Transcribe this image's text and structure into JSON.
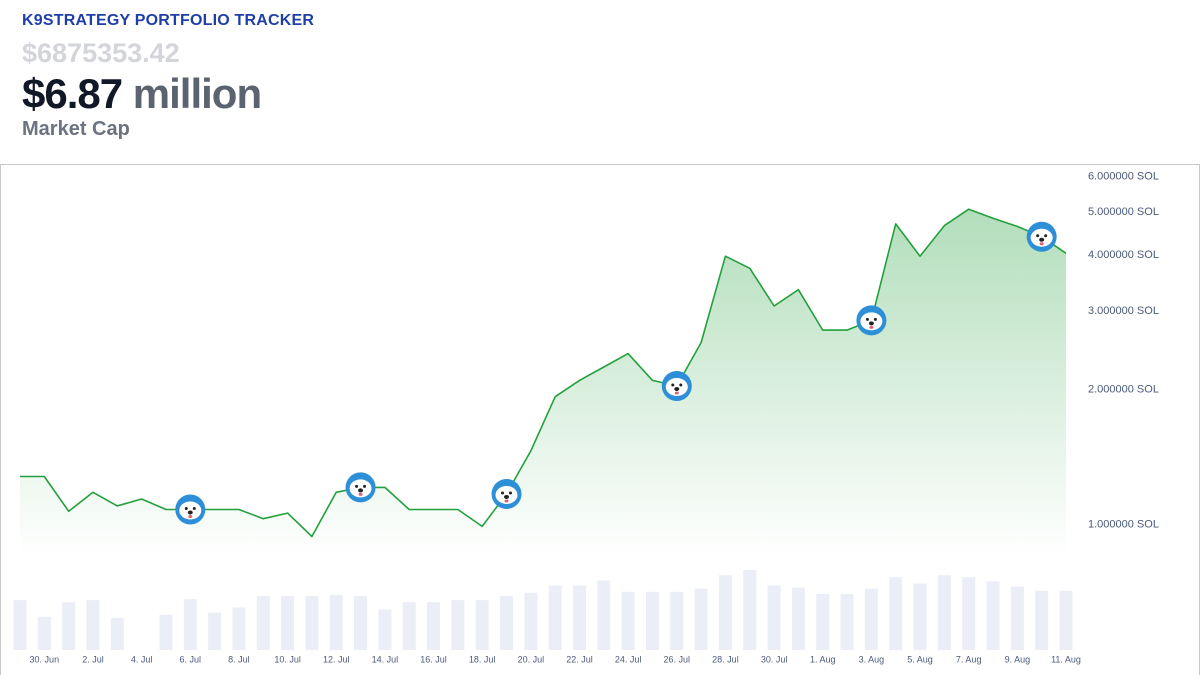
{
  "header": {
    "title": "K9STRATEGY PORTFOLIO TRACKER",
    "exact_value": "$6875353.42",
    "value": "$6.87",
    "unit": "million",
    "label": "Market Cap"
  },
  "chart_data": {
    "type": "area",
    "categories": [
      null,
      "30. Jun",
      null,
      "2. Jul",
      null,
      "4. Jul",
      null,
      "6. Jul",
      null,
      "8. Jul",
      null,
      "10. Jul",
      null,
      "12. Jul",
      null,
      "14. Jul",
      null,
      "16. Jul",
      null,
      "18. Jul",
      null,
      "20. Jul",
      null,
      "22. Jul",
      null,
      "24. Jul",
      null,
      "26. Jul",
      null,
      "28. Jul",
      null,
      "30. Jul",
      null,
      "1. Aug",
      null,
      "3. Aug",
      null,
      "5. Aug",
      null,
      "7. Aug",
      null,
      "9. Aug",
      null,
      "11. Aug"
    ],
    "series": [
      {
        "color": "#23a03c",
        "values": [
          1.28,
          1.28,
          1.07,
          1.18,
          1.1,
          1.14,
          1.08,
          1.08,
          1.08,
          1.08,
          1.03,
          1.06,
          0.94,
          1.18,
          1.21,
          1.21,
          1.08,
          1.08,
          1.08,
          0.99,
          1.17,
          1.46,
          1.93,
          2.1,
          2.25,
          2.41,
          2.1,
          2.04,
          2.55,
          3.98,
          3.74,
          3.08,
          3.35,
          2.72,
          2.72,
          2.86,
          4.7,
          3.98,
          4.66,
          5.07,
          4.84,
          4.64,
          4.4,
          4.04
        ]
      }
    ],
    "volume": {
      "color": "#eceef7",
      "values": [
        48,
        32,
        46,
        48,
        31,
        null,
        34,
        49,
        36,
        41,
        52,
        52,
        52,
        53,
        52,
        39,
        46,
        46,
        48,
        48,
        52,
        55,
        62,
        62,
        67,
        56,
        56,
        56,
        59,
        72,
        77,
        62,
        60,
        54,
        54,
        59,
        70,
        64,
        72,
        70,
        66,
        61,
        57,
        57
      ]
    },
    "y_scale": "log",
    "ylim": [
      0.85,
      6.3
    ],
    "yticks": [
      {
        "value": 1,
        "label": "1.000000 SOL"
      },
      {
        "value": 2,
        "label": "2.000000 SOL"
      },
      {
        "value": 3,
        "label": "3.000000 SOL"
      },
      {
        "value": 4,
        "label": "4.000000 SOL"
      },
      {
        "value": 5,
        "label": "5.000000 SOL"
      },
      {
        "value": 6,
        "label": "6.000000 SOL"
      }
    ]
  }
}
